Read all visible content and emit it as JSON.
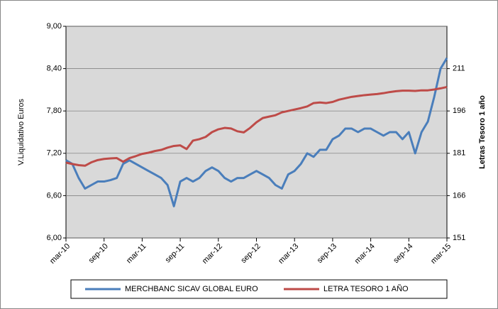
{
  "chart_data": {
    "type": "line",
    "y_label": "V.Liquidativo Euros",
    "y2_label": "Letras Tesoro 1 año",
    "categories": [
      "mar-10",
      null,
      null,
      null,
      null,
      null,
      "sep-10",
      null,
      null,
      null,
      null,
      null,
      "mar-11",
      null,
      null,
      null,
      null,
      null,
      "sep-11",
      null,
      null,
      null,
      null,
      null,
      "mar-12",
      null,
      null,
      null,
      null,
      null,
      "sep-12",
      null,
      null,
      null,
      null,
      null,
      "mar-13",
      null,
      null,
      null,
      null,
      null,
      "sep-13",
      null,
      null,
      null,
      null,
      null,
      "mar-14",
      null,
      null,
      null,
      null,
      null,
      "sep-14",
      null,
      null,
      null,
      null,
      null,
      "mar-15"
    ],
    "series": [
      {
        "name": "MERCHBANC SICAV GLOBAL EURO",
        "color": "#4a7ebb",
        "axis": "y",
        "values": [
          7.1,
          7.05,
          6.85,
          6.7,
          6.75,
          6.8,
          6.8,
          6.82,
          6.85,
          7.05,
          7.1,
          7.05,
          7.0,
          6.95,
          6.9,
          6.85,
          6.75,
          6.45,
          6.8,
          6.85,
          6.8,
          6.85,
          6.95,
          7.0,
          6.95,
          6.85,
          6.8,
          6.85,
          6.85,
          6.9,
          6.95,
          6.9,
          6.85,
          6.75,
          6.7,
          6.9,
          6.95,
          7.05,
          7.2,
          7.15,
          7.25,
          7.25,
          7.4,
          7.45,
          7.55,
          7.55,
          7.5,
          7.55,
          7.55,
          7.5,
          7.45,
          7.5,
          7.5,
          7.4,
          7.5,
          7.2,
          7.5,
          7.65,
          8.0,
          8.4,
          8.55
        ]
      },
      {
        "name": "LETRA TESORO 1 AÑO",
        "color": "#be4b48",
        "axis": "y2",
        "values": [
          177.7,
          177.2,
          176.8,
          176.6,
          177.8,
          178.6,
          179.0,
          179.2,
          179.3,
          178.0,
          179.3,
          180.0,
          180.8,
          181.2,
          181.8,
          182.2,
          183.0,
          183.6,
          183.8,
          182.5,
          185.5,
          186.0,
          186.8,
          188.5,
          189.5,
          190.0,
          189.8,
          188.8,
          188.4,
          190.0,
          192.0,
          193.5,
          194.0,
          194.5,
          195.5,
          196.0,
          196.5,
          197.0,
          197.6,
          198.8,
          199.0,
          198.8,
          199.2,
          200.0,
          200.5,
          201.0,
          201.3,
          201.6,
          201.8,
          202.0,
          202.3,
          202.7,
          203.0,
          203.2,
          203.2,
          203.1,
          203.3,
          203.3,
          203.6,
          204.0,
          204.5
        ]
      }
    ],
    "ylim": [
      6.0,
      9.0
    ],
    "yticks": [
      {
        "value": 6.0,
        "label": "6,00"
      },
      {
        "value": 6.6,
        "label": "6,60"
      },
      {
        "value": 7.2,
        "label": "7,20"
      },
      {
        "value": 7.8,
        "label": "7,80"
      },
      {
        "value": 8.4,
        "label": "8,40"
      },
      {
        "value": 9.0,
        "label": "9,00"
      }
    ],
    "y2lim": [
      151,
      226
    ],
    "y2ticks": [
      151,
      166,
      181,
      196,
      211
    ],
    "grid": true,
    "legend": "bottom"
  }
}
